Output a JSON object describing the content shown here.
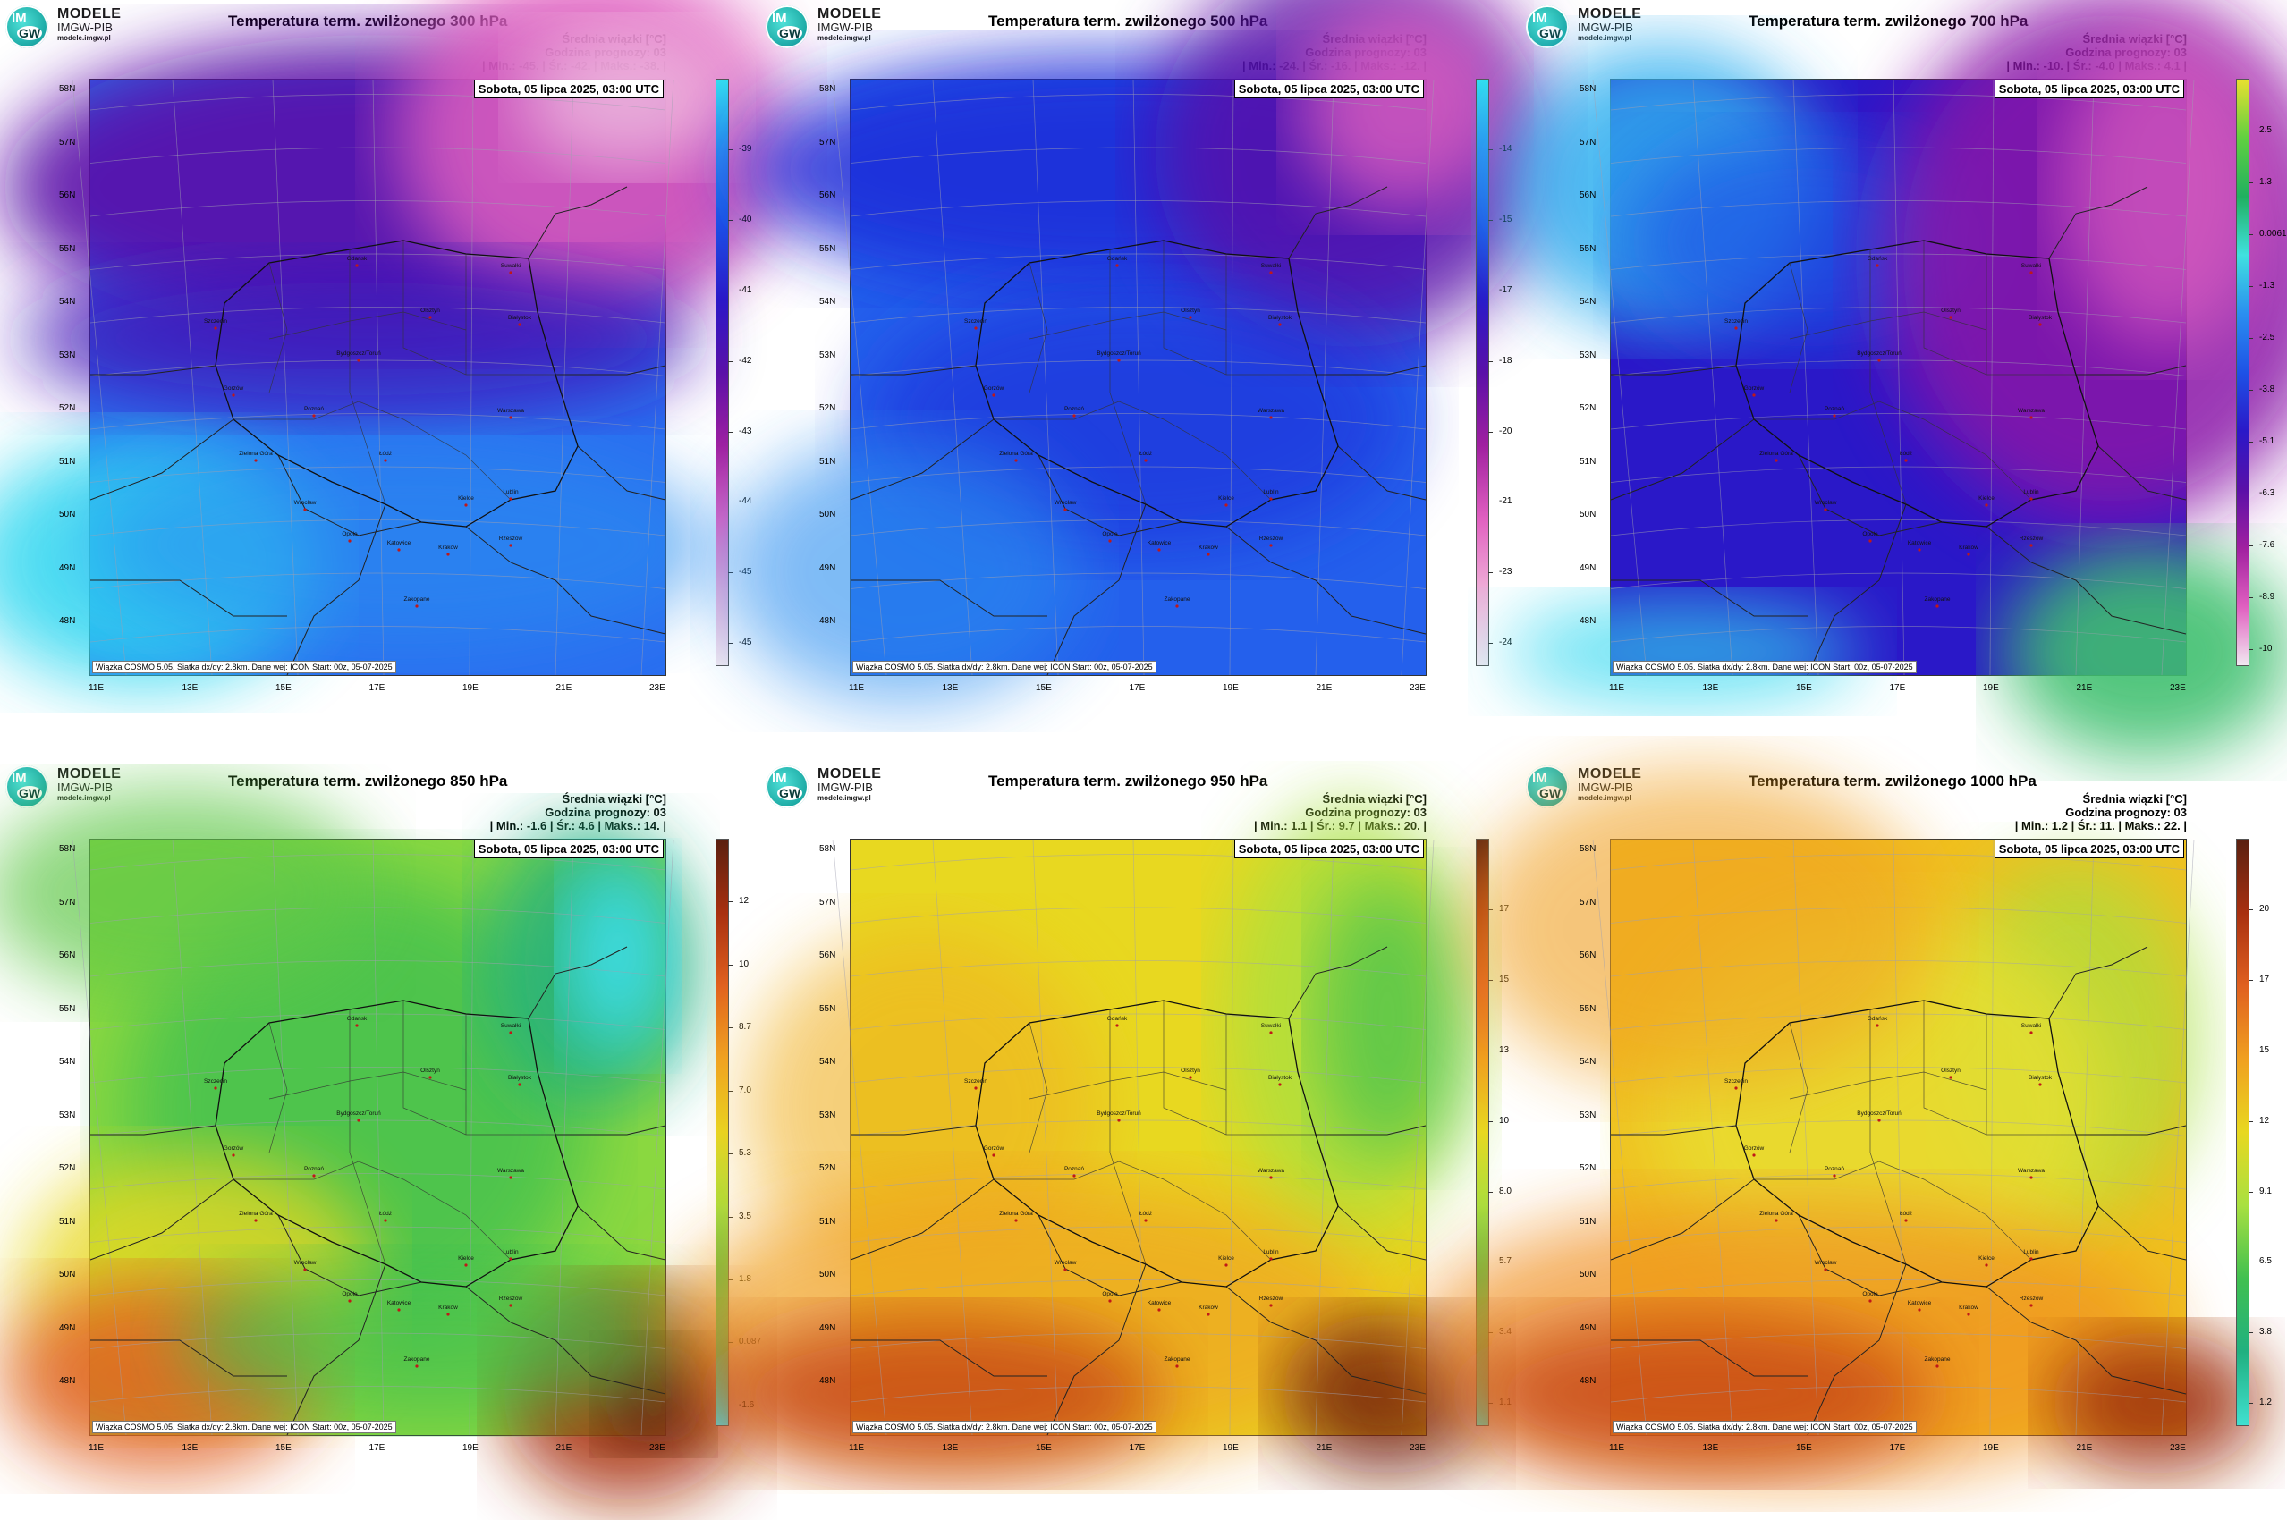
{
  "common": {
    "logo_title": "MODELE",
    "logo_sub": "IMGW-PIB",
    "logo_url": "modele.imgw.pl",
    "logo_im": "IM",
    "logo_gw": "GW",
    "info_line1": "Średnia wiązki [°C]",
    "info_line2": "Godzina prognozy: 03",
    "date": "Sobota, 05 lipca 2025, 03:00 UTC",
    "footer": "Wiązka COSMO 5.05. Siatka dx/dy: 2.8km. Dane wej: ICON Start: 00z, 05-07-2025",
    "lat_labels": [
      "58N",
      "57N",
      "56N",
      "55N",
      "54N",
      "53N",
      "52N",
      "51N",
      "50N",
      "49N",
      "48N"
    ],
    "lon_labels": [
      "11E",
      "13E",
      "15E",
      "17E",
      "19E",
      "21E",
      "23E"
    ],
    "cities": [
      "Gdańsk",
      "Suwałki",
      "Olsztyn",
      "Białystok",
      "Szczecin",
      "Bydgoszcz/Toruń",
      "Gorzów",
      "Poznań",
      "Warszawa",
      "Zielona Góra",
      "Łódź",
      "Lublin",
      "Wrocław",
      "Kielce",
      "Opole",
      "Katowice",
      "Kraków",
      "Rzeszów",
      "Zakopane"
    ]
  },
  "panels": [
    {
      "title": "Temperatura term. zwilżonego 300 hPa",
      "stats": "| Min.:     -45. | Śr.:     -42. | Maks.:    -38. |",
      "colorbar": [
        "-39",
        "-40",
        "-41",
        "-42",
        "-43",
        "-44",
        "-45",
        "-45"
      ],
      "colors": [
        "#33e0f0",
        "#2a8ef0",
        "#1e52e6",
        "#2a18c8",
        "#5a10a8",
        "#a020a0",
        "#e060c0",
        "#f0b0d8",
        "#f0e8f0"
      ]
    },
    {
      "title": "Temperatura term. zwilżonego 500 hPa",
      "stats": "| Min.:     -24. | Śr.:     -16. | Maks.:    -12. |",
      "colorbar": [
        "-14",
        "-15",
        "-17",
        "-18",
        "-20",
        "-21",
        "-23",
        "-24"
      ],
      "colors": [
        "#33e0f0",
        "#2a8ef0",
        "#1e52e6",
        "#2a18c8",
        "#5a10a8",
        "#a020a0",
        "#e060c0",
        "#f0b0d8",
        "#f0e8f0"
      ]
    },
    {
      "title": "Temperatura term. zwilżonego 700 hPa",
      "stats": "| Min.:     -10. | Śr.:     -4.0 | Maks.:    4.1 |",
      "colorbar": [
        "2.5",
        "1.3",
        "0.0061",
        "-1.3",
        "-2.5",
        "-3.8",
        "-5.1",
        "-6.3",
        "-7.6",
        "-8.9",
        "-10"
      ],
      "colors": [
        "#e8e030",
        "#60d040",
        "#20b060",
        "#40e0e0",
        "#2a8ef0",
        "#1e52e6",
        "#2a18c8",
        "#5a10a8",
        "#a020a0",
        "#e060c0",
        "#f0e8f0"
      ]
    },
    {
      "title": "Temperatura term. zwilżonego 850 hPa",
      "stats": "| Min.:     -1.6 | Śr.:     4.6 | Maks.:     14. |",
      "colorbar": [
        "12",
        "10",
        "8.7",
        "7.0",
        "5.3",
        "3.5",
        "1.8",
        "0.087",
        "-1.6"
      ],
      "colors": [
        "#5a2010",
        "#a83010",
        "#e06020",
        "#f0a020",
        "#e8d820",
        "#a8e040",
        "#40c050",
        "#20b080",
        "#40e0f0"
      ]
    },
    {
      "title": "Temperatura term. zwilżonego 950 hPa",
      "stats": "| Min.:     1.1 | Śr.:     9.7 | Maks.:     20. |",
      "colorbar": [
        "17",
        "15",
        "13",
        "10",
        "8.0",
        "5.7",
        "3.4",
        "1.1"
      ],
      "colors": [
        "#5a2010",
        "#a83010",
        "#e06020",
        "#f0a020",
        "#e8d820",
        "#a8e040",
        "#40c050",
        "#20b080",
        "#40e0d0"
      ]
    },
    {
      "title": "Temperatura term. zwilżonego 1000 hPa",
      "stats": "| Min.:     1.2 | Śr.:     11. | Maks.:     22. |",
      "colorbar": [
        "20",
        "17",
        "15",
        "12",
        "9.1",
        "6.5",
        "3.8",
        "1.2"
      ],
      "colors": [
        "#5a2010",
        "#a83010",
        "#e06020",
        "#f0a020",
        "#e8d820",
        "#a8e040",
        "#40c050",
        "#20b080",
        "#40e0d0"
      ]
    }
  ]
}
